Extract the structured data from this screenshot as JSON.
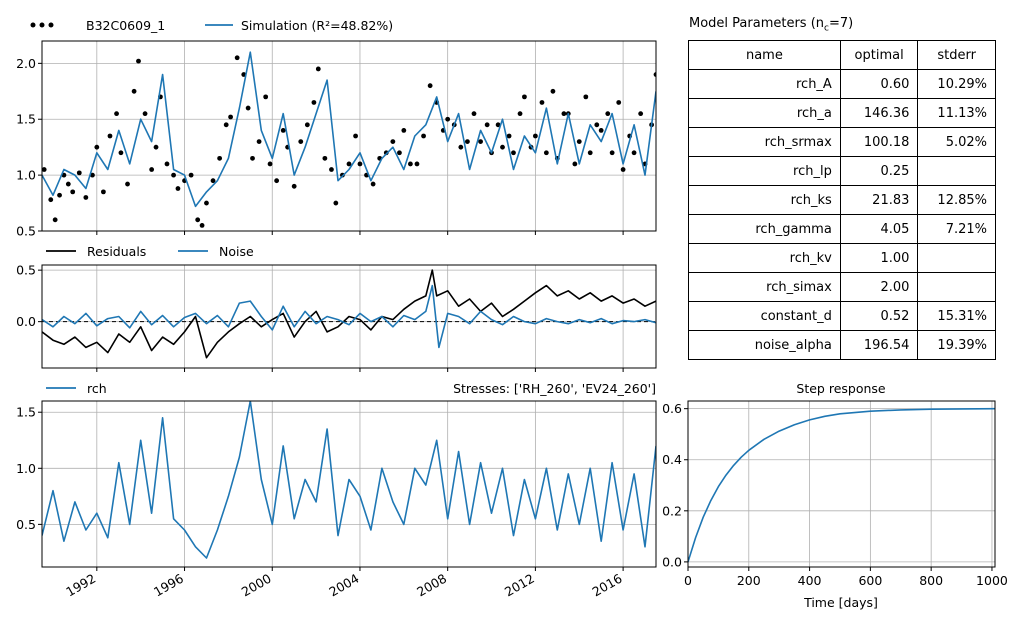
{
  "colors": {
    "observed": "#000000",
    "model": "#1f77b4",
    "grid": "#b0b0b0",
    "zero_line": "#000000"
  },
  "panel_main": {
    "legend": [
      {
        "label": "B32C0609_1",
        "style": "dots",
        "color": "#000000"
      },
      {
        "label": "Simulation (R²=48.82%)",
        "style": "line",
        "color": "#1f77b4"
      }
    ]
  },
  "panel_residuals": {
    "legend": [
      {
        "label": "Residuals",
        "style": "line",
        "color": "#000000"
      },
      {
        "label": "Noise",
        "style": "line",
        "color": "#1f77b4"
      }
    ]
  },
  "panel_contribution": {
    "legend": [
      {
        "label": "rch",
        "style": "line",
        "color": "#1f77b4"
      }
    ],
    "stresses_label": "Stresses: ['RH_260', 'EV24_260']"
  },
  "parameters_table": {
    "title": "Model Parameters (n",
    "title_sub": "c",
    "title_tail": "=7)",
    "columns": [
      "name",
      "optimal",
      "stderr"
    ],
    "rows": [
      [
        "rch_A",
        "0.60",
        "10.29%"
      ],
      [
        "rch_a",
        "146.36",
        "11.13%"
      ],
      [
        "rch_srmax",
        "100.18",
        "5.02%"
      ],
      [
        "rch_lp",
        "0.25",
        ""
      ],
      [
        "rch_ks",
        "21.83",
        "12.85%"
      ],
      [
        "rch_gamma",
        "4.05",
        "7.21%"
      ],
      [
        "rch_kv",
        "1.00",
        ""
      ],
      [
        "rch_simax",
        "2.00",
        ""
      ],
      [
        "constant_d",
        "0.52",
        "15.31%"
      ],
      [
        "noise_alpha",
        "196.54",
        "19.39%"
      ]
    ]
  },
  "chart_data": [
    {
      "id": "head",
      "type": "line",
      "xlim": [
        1989.5,
        2017.5
      ],
      "ylim": [
        0.5,
        2.2
      ],
      "yticks": [
        0.5,
        1.0,
        1.5,
        2.0
      ],
      "ytick_labels": [
        "0.5",
        "1.0",
        "1.5",
        "2.0"
      ],
      "xticks": [
        1992,
        1996,
        2000,
        2004,
        2008,
        2012,
        2016
      ],
      "grid": true,
      "legend_position": "top-left outside",
      "series": [
        {
          "name": "B32C0609_1",
          "style": "scatter",
          "color": "#000000",
          "x": [
            1989.6,
            1989.9,
            1990.1,
            1990.3,
            1990.5,
            1990.7,
            1990.9,
            1991.2,
            1991.5,
            1991.8,
            1992.0,
            1992.3,
            1992.6,
            1992.9,
            1993.1,
            1993.4,
            1993.7,
            1993.9,
            1994.2,
            1994.5,
            1994.7,
            1994.9,
            1995.2,
            1995.5,
            1995.7,
            1996.0,
            1996.3,
            1996.6,
            1996.8,
            1997.0,
            1997.3,
            1997.6,
            1997.9,
            1998.1,
            1998.4,
            1998.7,
            1998.9,
            1999.1,
            1999.4,
            1999.7,
            1999.9,
            2000.2,
            2000.5,
            2000.7,
            2001.0,
            2001.3,
            2001.6,
            2001.9,
            2002.1,
            2002.4,
            2002.7,
            2002.9,
            2003.2,
            2003.5,
            2003.8,
            2004.0,
            2004.3,
            2004.6,
            2004.9,
            2005.2,
            2005.5,
            2005.8,
            2006.0,
            2006.3,
            2006.6,
            2006.9,
            2007.2,
            2007.5,
            2007.8,
            2008.0,
            2008.3,
            2008.6,
            2008.9,
            2009.2,
            2009.5,
            2009.8,
            2010.0,
            2010.3,
            2010.5,
            2010.8,
            2011.0,
            2011.3,
            2011.5,
            2011.8,
            2012.0,
            2012.3,
            2012.5,
            2012.8,
            2013.0,
            2013.3,
            2013.5,
            2013.8,
            2014.0,
            2014.3,
            2014.5,
            2014.8,
            2015.0,
            2015.3,
            2015.5,
            2015.8,
            2016.0,
            2016.3,
            2016.5,
            2016.8,
            2017.0,
            2017.3,
            2017.5
          ],
          "y": [
            1.05,
            0.78,
            0.6,
            0.82,
            1.0,
            0.92,
            0.85,
            1.02,
            0.8,
            1.0,
            1.25,
            0.85,
            1.35,
            1.55,
            1.2,
            0.92,
            1.75,
            2.02,
            1.55,
            1.05,
            1.25,
            1.7,
            1.1,
            1.0,
            0.88,
            0.95,
            1.0,
            0.6,
            0.55,
            0.75,
            0.95,
            1.15,
            1.45,
            1.52,
            2.05,
            1.9,
            1.6,
            1.15,
            1.3,
            1.7,
            1.1,
            0.95,
            1.4,
            1.25,
            0.9,
            1.3,
            1.45,
            1.65,
            1.95,
            1.15,
            1.05,
            0.75,
            1.0,
            1.1,
            1.35,
            1.1,
            1.0,
            0.92,
            1.15,
            1.2,
            1.3,
            1.2,
            1.4,
            1.1,
            1.1,
            1.35,
            1.8,
            1.65,
            1.4,
            1.5,
            1.45,
            1.25,
            1.3,
            1.55,
            1.3,
            1.45,
            1.2,
            1.45,
            1.25,
            1.35,
            1.2,
            1.55,
            1.7,
            1.25,
            1.35,
            1.65,
            1.2,
            1.75,
            1.15,
            1.55,
            1.55,
            1.1,
            1.3,
            1.7,
            1.2,
            1.45,
            1.4,
            1.55,
            1.2,
            1.65,
            1.05,
            1.35,
            1.2,
            1.55,
            1.1,
            1.45,
            1.9
          ]
        },
        {
          "name": "Simulation",
          "style": "line",
          "color": "#1f77b4",
          "x": [
            1989.5,
            1990.0,
            1990.5,
            1991.0,
            1991.5,
            1992.0,
            1992.5,
            1993.0,
            1993.5,
            1994.0,
            1994.5,
            1995.0,
            1995.5,
            1996.0,
            1996.5,
            1997.0,
            1997.5,
            1998.0,
            1998.5,
            1999.0,
            1999.5,
            2000.0,
            2000.5,
            2001.0,
            2001.5,
            2002.0,
            2002.5,
            2003.0,
            2003.5,
            2004.0,
            2004.5,
            2005.0,
            2005.5,
            2006.0,
            2006.5,
            2007.0,
            2007.5,
            2008.0,
            2008.5,
            2009.0,
            2009.5,
            2010.0,
            2010.5,
            2011.0,
            2011.5,
            2012.0,
            2012.5,
            2013.0,
            2013.5,
            2014.0,
            2014.5,
            2015.0,
            2015.5,
            2016.0,
            2016.5,
            2017.0,
            2017.5
          ],
          "y": [
            1.0,
            0.82,
            1.05,
            1.0,
            0.88,
            1.2,
            1.05,
            1.4,
            1.1,
            1.5,
            1.3,
            1.9,
            1.05,
            1.0,
            0.72,
            0.85,
            0.95,
            1.15,
            1.6,
            2.1,
            1.4,
            1.15,
            1.55,
            1.0,
            1.25,
            1.55,
            1.85,
            0.95,
            1.05,
            1.2,
            0.95,
            1.15,
            1.25,
            1.05,
            1.35,
            1.45,
            1.7,
            1.3,
            1.55,
            1.05,
            1.4,
            1.2,
            1.5,
            1.05,
            1.35,
            1.2,
            1.6,
            1.1,
            1.55,
            1.1,
            1.45,
            1.3,
            1.55,
            1.1,
            1.45,
            1.0,
            1.75
          ]
        }
      ]
    },
    {
      "id": "residuals",
      "type": "line",
      "xlim": [
        1989.5,
        2017.5
      ],
      "ylim": [
        -0.45,
        0.55
      ],
      "yticks": [
        0.0,
        0.5
      ],
      "ytick_labels": [
        "0.0",
        "0.5"
      ],
      "xticks": [
        1992,
        1996,
        2000,
        2004,
        2008,
        2012,
        2016
      ],
      "grid": true,
      "legend_position": "top-left outside",
      "zero_line": true,
      "series": [
        {
          "name": "Residuals",
          "color": "#000000",
          "x": [
            1989.5,
            1990.0,
            1990.5,
            1991.0,
            1991.5,
            1992.0,
            1992.5,
            1993.0,
            1993.5,
            1994.0,
            1994.5,
            1995.0,
            1995.5,
            1996.0,
            1996.5,
            1997.0,
            1997.5,
            1998.0,
            1998.5,
            1999.0,
            1999.5,
            2000.0,
            2000.5,
            2001.0,
            2001.5,
            2002.0,
            2002.5,
            2003.0,
            2003.5,
            2004.0,
            2004.5,
            2005.0,
            2005.5,
            2006.0,
            2006.5,
            2007.0,
            2007.3,
            2007.5,
            2008.0,
            2008.5,
            2009.0,
            2009.5,
            2010.0,
            2010.5,
            2011.0,
            2011.5,
            2012.0,
            2012.5,
            2013.0,
            2013.5,
            2014.0,
            2014.5,
            2015.0,
            2015.5,
            2016.0,
            2016.5,
            2017.0,
            2017.5
          ],
          "y": [
            -0.1,
            -0.18,
            -0.22,
            -0.15,
            -0.25,
            -0.2,
            -0.3,
            -0.12,
            -0.2,
            -0.05,
            -0.28,
            -0.15,
            -0.22,
            -0.1,
            0.05,
            -0.35,
            -0.2,
            -0.1,
            -0.02,
            0.05,
            -0.05,
            0.02,
            0.08,
            -0.15,
            0.0,
            0.1,
            -0.1,
            -0.05,
            0.05,
            0.02,
            -0.08,
            0.05,
            0.02,
            0.12,
            0.2,
            0.25,
            0.5,
            0.25,
            0.3,
            0.15,
            0.22,
            0.1,
            0.18,
            0.05,
            0.12,
            0.2,
            0.28,
            0.35,
            0.25,
            0.3,
            0.22,
            0.28,
            0.2,
            0.25,
            0.18,
            0.22,
            0.15,
            0.2
          ]
        },
        {
          "name": "Noise",
          "color": "#1f77b4",
          "x": [
            1989.5,
            1990.0,
            1990.5,
            1991.0,
            1991.5,
            1992.0,
            1992.5,
            1993.0,
            1993.5,
            1994.0,
            1994.5,
            1995.0,
            1995.5,
            1996.0,
            1996.5,
            1997.0,
            1997.5,
            1998.0,
            1998.5,
            1999.0,
            1999.5,
            2000.0,
            2000.5,
            2001.0,
            2001.5,
            2002.0,
            2002.5,
            2003.0,
            2003.5,
            2004.0,
            2004.5,
            2005.0,
            2005.5,
            2006.0,
            2006.5,
            2007.0,
            2007.3,
            2007.6,
            2008.0,
            2008.5,
            2009.0,
            2009.5,
            2010.0,
            2010.5,
            2011.0,
            2011.5,
            2012.0,
            2012.5,
            2013.0,
            2013.5,
            2014.0,
            2014.5,
            2015.0,
            2015.5,
            2016.0,
            2016.5,
            2017.0,
            2017.5
          ],
          "y": [
            0.02,
            -0.05,
            0.05,
            -0.02,
            0.08,
            -0.04,
            0.03,
            0.05,
            -0.06,
            0.1,
            -0.03,
            0.06,
            -0.05,
            0.04,
            0.08,
            -0.02,
            0.06,
            -0.05,
            0.18,
            0.2,
            0.05,
            -0.08,
            0.15,
            -0.05,
            0.1,
            -0.02,
            0.05,
            0.02,
            -0.03,
            0.08,
            0.0,
            0.05,
            -0.05,
            0.06,
            0.02,
            0.1,
            0.35,
            -0.25,
            0.08,
            0.05,
            -0.02,
            0.1,
            0.02,
            -0.03,
            0.05,
            0.0,
            -0.02,
            0.03,
            0.0,
            -0.02,
            0.02,
            -0.01,
            0.03,
            -0.02,
            0.01,
            0.0,
            0.02,
            -0.01
          ]
        }
      ]
    },
    {
      "id": "contribution_rch",
      "type": "line",
      "xlim": [
        1989.5,
        2017.5
      ],
      "ylim": [
        0.12,
        1.6
      ],
      "yticks": [
        0.5,
        1.0,
        1.5
      ],
      "ytick_labels": [
        "0.5",
        "1.0",
        "1.5"
      ],
      "xticks": [
        1992,
        1996,
        2000,
        2004,
        2008,
        2012,
        2016
      ],
      "xtick_labels": [
        "1992",
        "1996",
        "2000",
        "2004",
        "2008",
        "2012",
        "2016"
      ],
      "grid": true,
      "legend_position": "top-left outside",
      "series": [
        {
          "name": "rch",
          "color": "#1f77b4",
          "x": [
            1989.5,
            1990.0,
            1990.5,
            1991.0,
            1991.5,
            1992.0,
            1992.5,
            1993.0,
            1993.5,
            1994.0,
            1994.5,
            1995.0,
            1995.5,
            1996.0,
            1996.5,
            1997.0,
            1997.5,
            1998.0,
            1998.5,
            1999.0,
            1999.5,
            2000.0,
            2000.5,
            2001.0,
            2001.5,
            2002.0,
            2002.5,
            2003.0,
            2003.5,
            2004.0,
            2004.5,
            2005.0,
            2005.5,
            2006.0,
            2006.5,
            2007.0,
            2007.5,
            2008.0,
            2008.5,
            2009.0,
            2009.5,
            2010.0,
            2010.5,
            2011.0,
            2011.5,
            2012.0,
            2012.5,
            2013.0,
            2013.5,
            2014.0,
            2014.5,
            2015.0,
            2015.5,
            2016.0,
            2016.5,
            2017.0,
            2017.5
          ],
          "y": [
            0.4,
            0.8,
            0.35,
            0.7,
            0.45,
            0.6,
            0.38,
            1.05,
            0.5,
            1.25,
            0.6,
            1.45,
            0.55,
            0.45,
            0.3,
            0.2,
            0.45,
            0.75,
            1.1,
            1.6,
            0.9,
            0.5,
            1.2,
            0.55,
            0.9,
            0.7,
            1.35,
            0.4,
            0.9,
            0.75,
            0.45,
            1.0,
            0.7,
            0.5,
            1.0,
            0.85,
            1.25,
            0.55,
            1.15,
            0.5,
            1.05,
            0.6,
            1.0,
            0.4,
            0.9,
            0.55,
            1.0,
            0.45,
            0.95,
            0.5,
            1.0,
            0.35,
            1.05,
            0.45,
            0.95,
            0.3,
            1.2
          ]
        }
      ]
    },
    {
      "id": "step_response",
      "type": "line",
      "title": "Step response",
      "xlabel": "Time [days]",
      "xlim": [
        0,
        1010
      ],
      "ylim": [
        -0.02,
        0.63
      ],
      "xticks": [
        0,
        200,
        400,
        600,
        800,
        1000
      ],
      "xtick_labels": [
        "0",
        "200",
        "400",
        "600",
        "800",
        "1000"
      ],
      "yticks": [
        0.0,
        0.2,
        0.4,
        0.6
      ],
      "ytick_labels": [
        "0.0",
        "0.2",
        "0.4",
        "0.6"
      ],
      "grid": true,
      "series": [
        {
          "name": "rch",
          "color": "#1f77b4",
          "x": [
            0,
            25,
            50,
            75,
            100,
            125,
            150,
            175,
            200,
            250,
            300,
            350,
            400,
            450,
            500,
            600,
            700,
            800,
            900,
            1010
          ],
          "y": [
            0.0,
            0.095,
            0.175,
            0.24,
            0.295,
            0.34,
            0.378,
            0.41,
            0.437,
            0.48,
            0.512,
            0.537,
            0.556,
            0.57,
            0.58,
            0.59,
            0.595,
            0.598,
            0.599,
            0.6
          ]
        }
      ]
    }
  ]
}
